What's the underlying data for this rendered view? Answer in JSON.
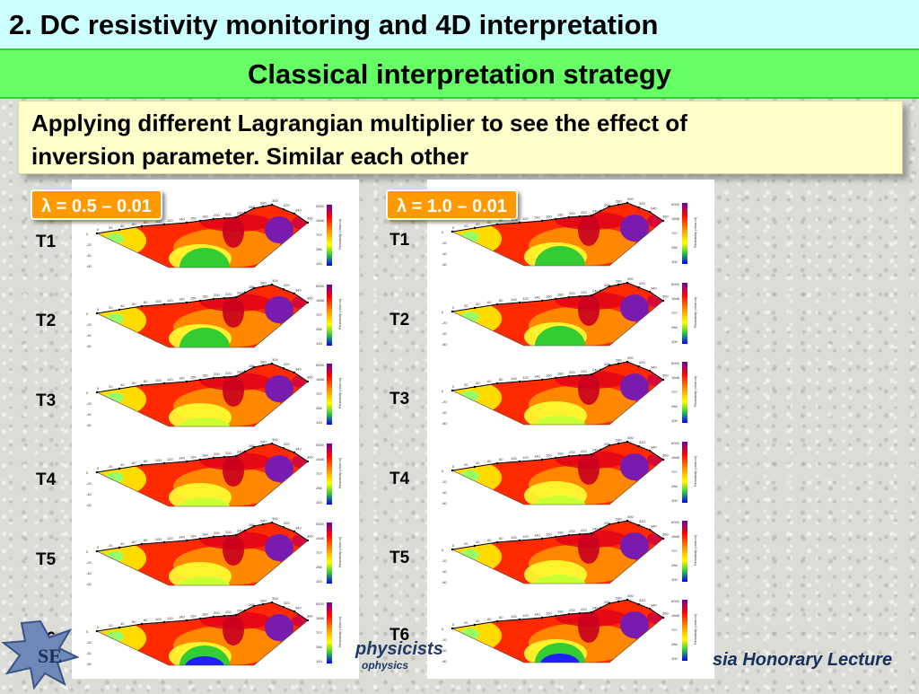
{
  "header": {
    "title": "2. DC resistivity monitoring and 4D interpretation",
    "subtitle": "Classical interpretation strategy"
  },
  "description": {
    "line1": "Applying different  Lagrangian multiplier to see the effect of",
    "line2": "inversion parameter. Similar each other"
  },
  "left_column": {
    "lambda_label": "λ = 0.5 – 0.01",
    "times": [
      "T1",
      "T2",
      "T3",
      "T4",
      "T5",
      "T6"
    ]
  },
  "right_column": {
    "lambda_label": "λ = 1.0 – 0.01",
    "times": [
      "T1",
      "T2",
      "T3",
      "T4",
      "T5",
      "T6"
    ]
  },
  "section_axes": {
    "top_ticks": [
      "0",
      "20",
      "40",
      "60",
      "80",
      "100",
      "120",
      "140",
      "160",
      "180",
      "200",
      "220",
      "240",
      "260",
      "280",
      "300",
      "320",
      "340",
      "360"
    ],
    "depth_ticks": [
      "0",
      "-20",
      "-40",
      "-60"
    ],
    "colorbar_ticks": [
      "5000",
      "1668",
      "707",
      "286",
      "100"
    ],
    "colorbar_label": "Resistivity (ohm-m)"
  },
  "footer": {
    "left_logo_text": "SE",
    "center_logo_line1": "physicists",
    "center_logo_line2": "ophysics",
    "right_text": "sia Honorary Lecture"
  },
  "colors": {
    "title_band": "#ccffff",
    "subtitle_band": "#66ff66",
    "description_box": "#ffffcc",
    "lambda_badge": "#ff9900"
  }
}
